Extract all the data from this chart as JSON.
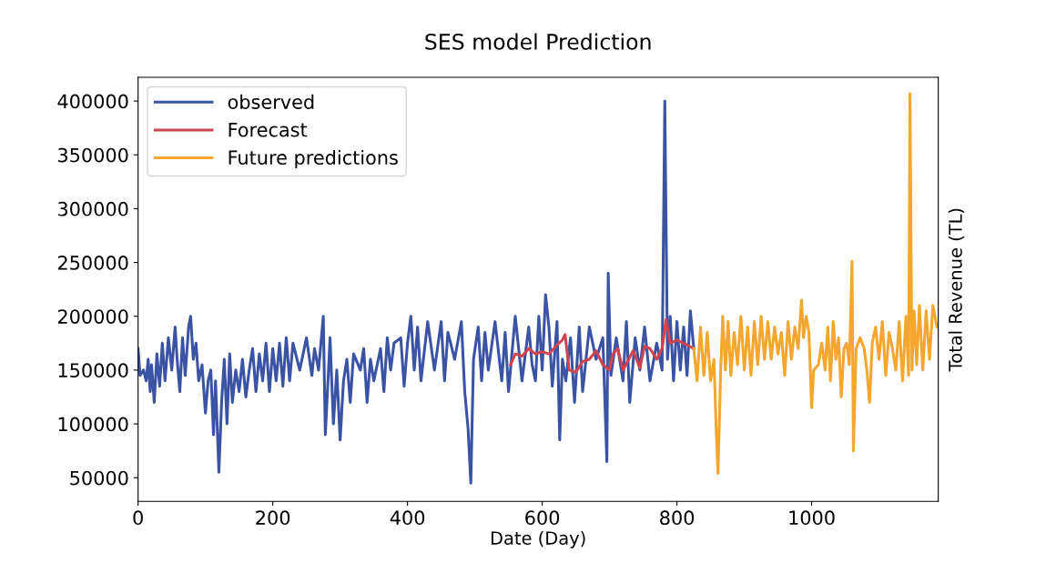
{
  "chart_data": {
    "type": "line",
    "title": "SES model Prediction",
    "xlabel": "Date (Day)",
    "ylabel": "Total Revenue (TL)",
    "xlim": [
      0,
      1188
    ],
    "xticks": [
      0,
      200,
      400,
      600,
      800,
      1000
    ],
    "ylim": [
      28000,
      422000
    ],
    "yticks": [
      50000,
      100000,
      150000,
      200000,
      250000,
      300000,
      350000,
      400000
    ],
    "grid": false,
    "legend": "top left",
    "series": [
      {
        "name": "observed",
        "color": "#3a53a4",
        "x": [
          0,
          3,
          8,
          12,
          15,
          18,
          20,
          24,
          28,
          32,
          36,
          40,
          45,
          50,
          55,
          58,
          62,
          66,
          70,
          75,
          78,
          82,
          86,
          90,
          95,
          100,
          104,
          108,
          112,
          115,
          120,
          124,
          128,
          132,
          136,
          140,
          145,
          150,
          155,
          160,
          165,
          170,
          175,
          180,
          185,
          190,
          195,
          200,
          205,
          210,
          215,
          220,
          225,
          230,
          240,
          250,
          258,
          262,
          268,
          275,
          278,
          282,
          285,
          290,
          295,
          300,
          305,
          310,
          315,
          320,
          330,
          335,
          340,
          345,
          350,
          360,
          365,
          370,
          375,
          380,
          390,
          395,
          400,
          405,
          410,
          415,
          420,
          430,
          440,
          450,
          455,
          460,
          470,
          480,
          485,
          490,
          494,
          498,
          505,
          510,
          515,
          520,
          530,
          540,
          545,
          550,
          560,
          570,
          580,
          585,
          590,
          595,
          600,
          605,
          610,
          615,
          622,
          626,
          630,
          635,
          642,
          648,
          655,
          660,
          670,
          680,
          690,
          696,
          698,
          702,
          710,
          720,
          725,
          730,
          738,
          745,
          752,
          760,
          770,
          778,
          782,
          786,
          790,
          795,
          800,
          805,
          810,
          815,
          820,
          825
        ],
        "values": [
          170000,
          145000,
          150000,
          140000,
          160000,
          130000,
          155000,
          120000,
          165000,
          135000,
          175000,
          140000,
          180000,
          150000,
          190000,
          160000,
          130000,
          180000,
          145000,
          190000,
          200000,
          160000,
          175000,
          140000,
          155000,
          110000,
          140000,
          150000,
          90000,
          140000,
          55000,
          120000,
          160000,
          100000,
          165000,
          120000,
          150000,
          130000,
          160000,
          125000,
          150000,
          170000,
          130000,
          165000,
          140000,
          175000,
          130000,
          170000,
          140000,
          175000,
          135000,
          180000,
          140000,
          175000,
          150000,
          180000,
          145000,
          170000,
          150000,
          200000,
          90000,
          140000,
          180000,
          100000,
          150000,
          85000,
          140000,
          160000,
          120000,
          165000,
          150000,
          170000,
          120000,
          160000,
          140000,
          170000,
          130000,
          180000,
          150000,
          175000,
          180000,
          135000,
          175000,
          200000,
          150000,
          190000,
          140000,
          195000,
          150000,
          195000,
          140000,
          185000,
          160000,
          195000,
          130000,
          95000,
          45000,
          160000,
          190000,
          140000,
          185000,
          150000,
          195000,
          140000,
          185000,
          130000,
          200000,
          140000,
          190000,
          155000,
          140000,
          200000,
          150000,
          220000,
          190000,
          135000,
          195000,
          85000,
          160000,
          140000,
          180000,
          120000,
          190000,
          130000,
          190000,
          160000,
          180000,
          65000,
          240000,
          145000,
          180000,
          140000,
          195000,
          120000,
          180000,
          150000,
          190000,
          140000,
          175000,
          150000,
          400000,
          160000,
          200000,
          140000,
          195000,
          150000,
          190000,
          145000,
          205000,
          170000
        ]
      },
      {
        "name": "Forecast",
        "color": "#d0434f",
        "x": [
          553,
          560,
          570,
          580,
          590,
          600,
          610,
          620,
          630,
          634,
          640,
          650,
          660,
          670,
          680,
          690,
          700,
          705,
          712,
          720,
          730,
          735,
          745,
          752,
          760,
          770,
          778,
          784,
          790,
          800,
          810,
          825
        ],
        "values": [
          155000,
          165000,
          163000,
          170000,
          165000,
          167000,
          165000,
          172000,
          178000,
          183000,
          150000,
          148000,
          158000,
          160000,
          168000,
          155000,
          150000,
          165000,
          170000,
          150000,
          162000,
          168000,
          152000,
          172000,
          170000,
          160000,
          170000,
          197000,
          175000,
          178000,
          175000,
          170000
        ]
      },
      {
        "name": "Future predictions",
        "color": "#f5a62e",
        "x": [
          825,
          830,
          835,
          840,
          845,
          850,
          855,
          858,
          861,
          865,
          868,
          872,
          876,
          880,
          885,
          890,
          895,
          900,
          905,
          910,
          915,
          920,
          925,
          930,
          935,
          940,
          945,
          950,
          955,
          960,
          965,
          970,
          975,
          980,
          985,
          988,
          992,
          996,
          1000,
          1003,
          1010,
          1015,
          1020,
          1024,
          1028,
          1032,
          1036,
          1040,
          1044,
          1048,
          1052,
          1056,
          1060,
          1062,
          1066,
          1072,
          1078,
          1082,
          1086,
          1090,
          1095,
          1100,
          1105,
          1110,
          1115,
          1120,
          1125,
          1130,
          1135,
          1140,
          1144,
          1146,
          1149,
          1152,
          1156,
          1160,
          1165,
          1170,
          1175,
          1180,
          1186
        ],
        "values": [
          170000,
          140000,
          190000,
          145000,
          185000,
          140000,
          160000,
          100000,
          54000,
          150000,
          200000,
          150000,
          195000,
          145000,
          185000,
          155000,
          200000,
          150000,
          190000,
          145000,
          195000,
          155000,
          200000,
          160000,
          195000,
          160000,
          190000,
          165000,
          185000,
          145000,
          195000,
          160000,
          190000,
          170000,
          215000,
          180000,
          200000,
          185000,
          115000,
          150000,
          155000,
          175000,
          150000,
          190000,
          140000,
          195000,
          160000,
          180000,
          125000,
          170000,
          175000,
          155000,
          251000,
          75000,
          170000,
          180000,
          170000,
          150000,
          120000,
          175000,
          190000,
          160000,
          195000,
          145000,
          185000,
          170000,
          150000,
          195000,
          140000,
          200000,
          145000,
          407000,
          150000,
          205000,
          155000,
          210000,
          150000,
          205000,
          160000,
          210000,
          190000
        ]
      }
    ]
  }
}
